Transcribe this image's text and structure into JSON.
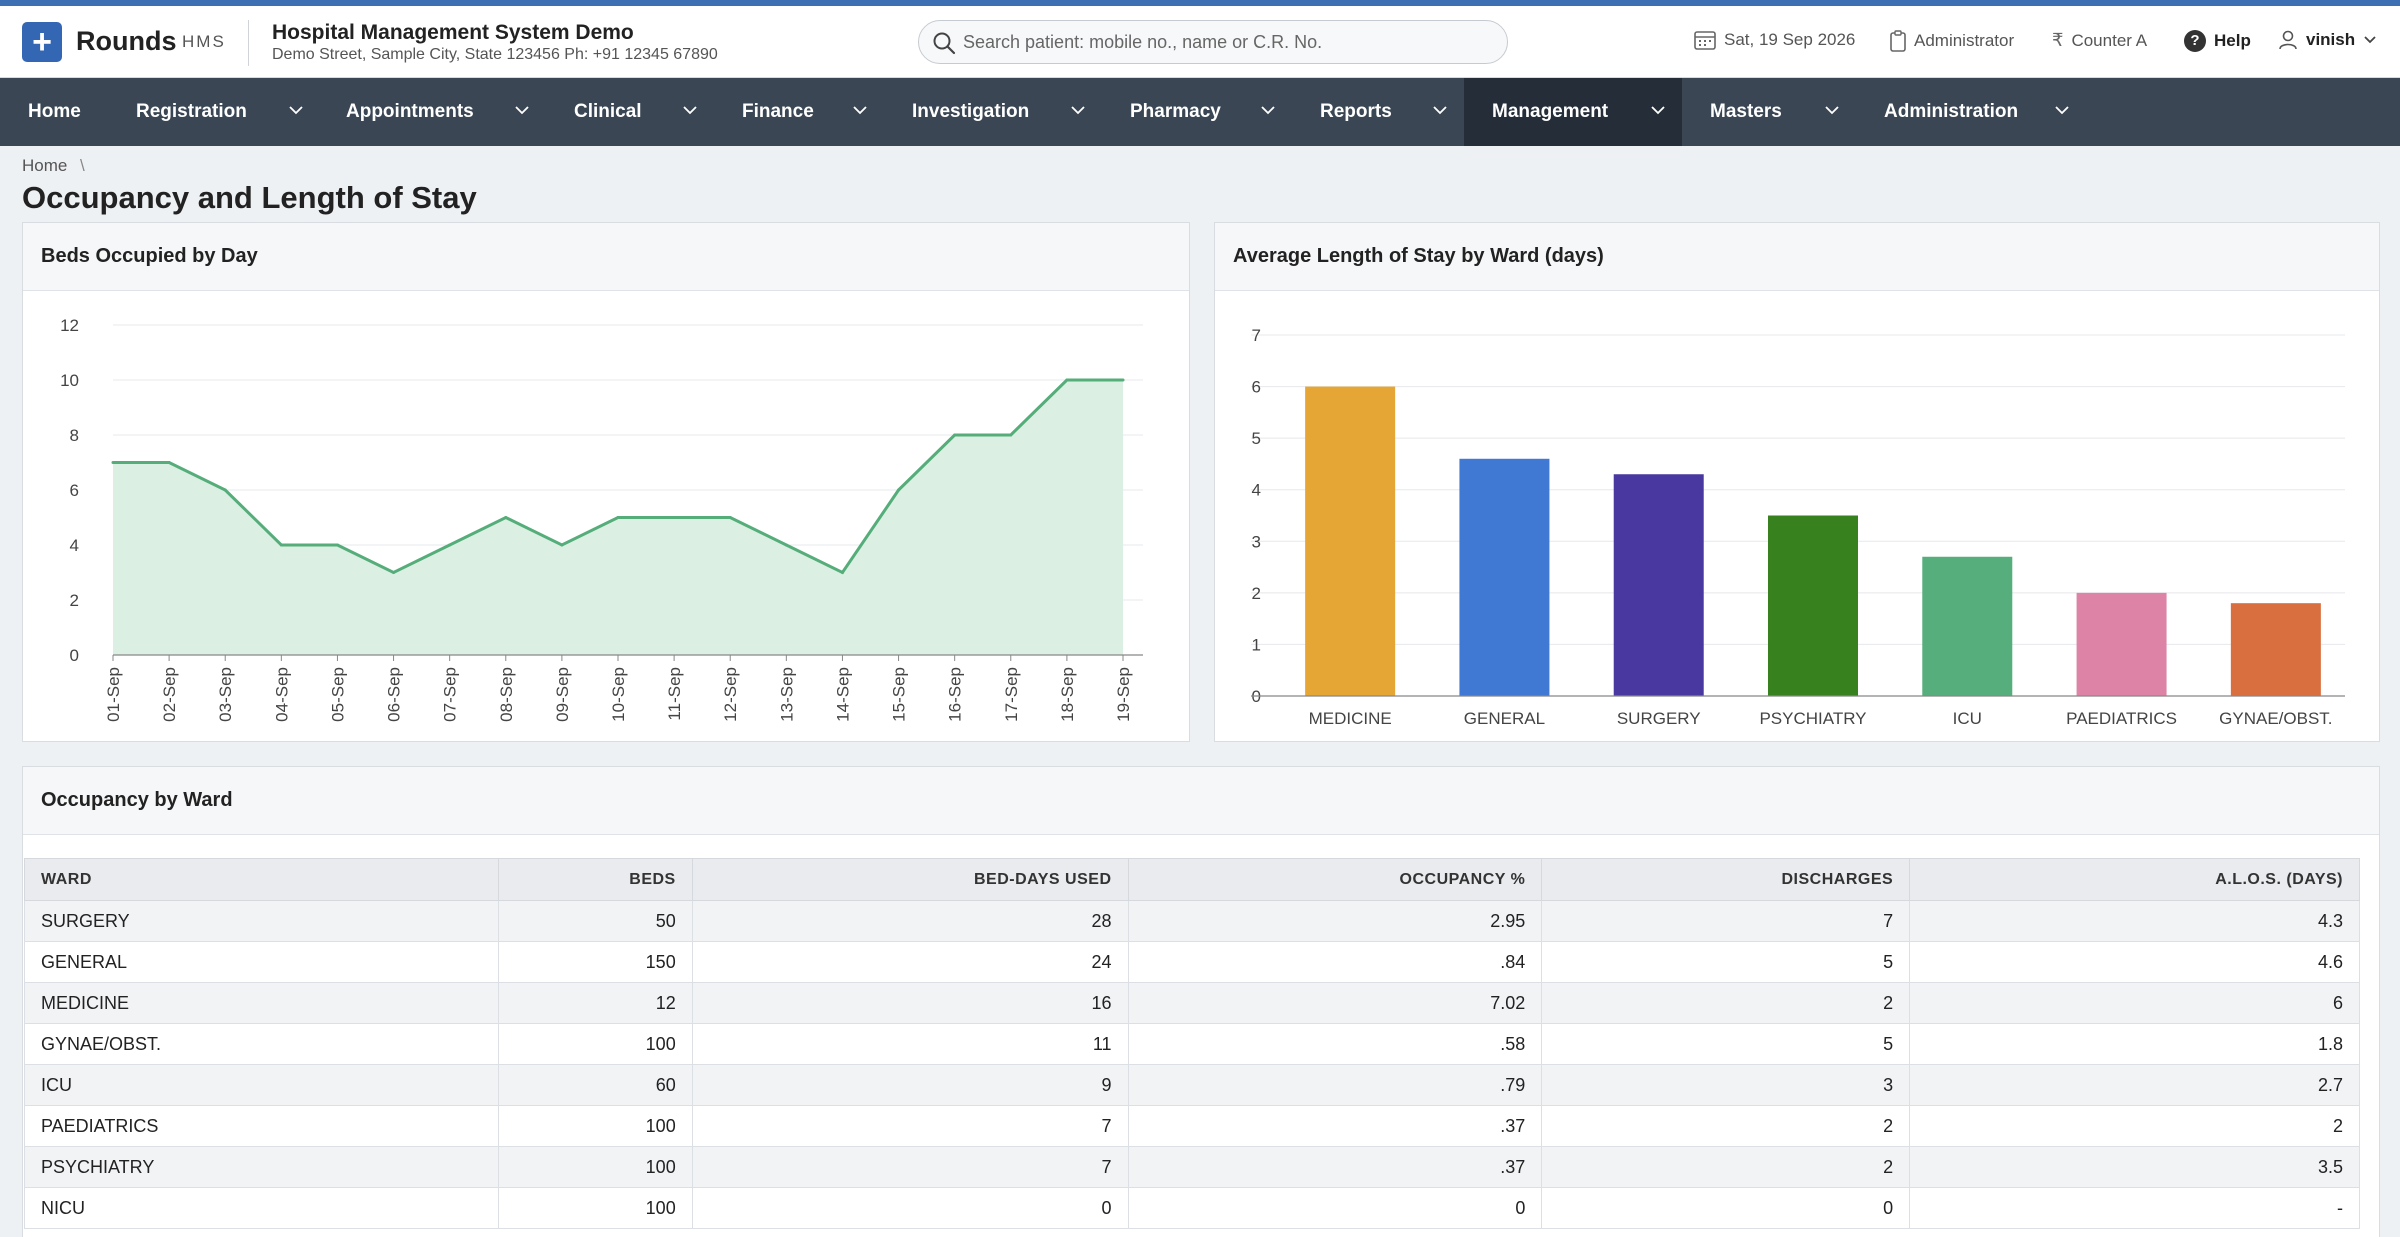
{
  "header": {
    "brand": "Rounds",
    "brand_sub": "HMS",
    "org_name": "Hospital Management System Demo",
    "org_address": "Demo Street, Sample City, State 123456 Ph: +91 12345 67890",
    "search_placeholder": "Search patient: mobile no., name or C.R. No.",
    "date": "Sat, 19 Sep 2026",
    "role": "Administrator",
    "counter": "Counter A",
    "help": "Help",
    "user": "vinish"
  },
  "nav": {
    "items": [
      {
        "label": "Home"
      },
      {
        "label": "Registration"
      },
      {
        "label": "Appointments"
      },
      {
        "label": "Clinical"
      },
      {
        "label": "Finance"
      },
      {
        "label": "Investigation"
      },
      {
        "label": "Pharmacy"
      },
      {
        "label": "Reports"
      },
      {
        "label": "Management"
      },
      {
        "label": "Masters"
      },
      {
        "label": "Administration"
      }
    ],
    "active": "Management"
  },
  "breadcrumb": {
    "home": "Home",
    "separator": "\\"
  },
  "page_title": "Occupancy and Length of Stay",
  "panels": {
    "beds_title": "Beds Occupied by Day",
    "alos_title": "Average Length of Stay by Ward (days)",
    "table_title": "Occupancy by Ward"
  },
  "chart_data": [
    {
      "type": "area",
      "title": "Beds Occupied by Day",
      "categories": [
        "01-Sep",
        "02-Sep",
        "03-Sep",
        "04-Sep",
        "05-Sep",
        "06-Sep",
        "07-Sep",
        "08-Sep",
        "09-Sep",
        "10-Sep",
        "11-Sep",
        "12-Sep",
        "13-Sep",
        "14-Sep",
        "15-Sep",
        "16-Sep",
        "17-Sep",
        "18-Sep",
        "19-Sep"
      ],
      "values": [
        7,
        7,
        6,
        4,
        4,
        3,
        4,
        5,
        4,
        5,
        5,
        5,
        4,
        3,
        6,
        8,
        8,
        10,
        10
      ],
      "ylim": [
        0,
        12
      ],
      "yticks": [
        0,
        2,
        4,
        6,
        8,
        10,
        12
      ],
      "color": "#55ad7a",
      "fill": "#dcefe3",
      "grid": true
    },
    {
      "type": "bar",
      "title": "Average Length of Stay by Ward (days)",
      "categories": [
        "MEDICINE",
        "GENERAL",
        "SURGERY",
        "PSYCHIATRY",
        "ICU",
        "PAEDIATRICS",
        "GYNAE/OBST."
      ],
      "values": [
        6,
        4.6,
        4.3,
        3.5,
        2.7,
        2,
        1.8
      ],
      "colors": [
        "#e5a636",
        "#3f79d3",
        "#4838a0",
        "#37821f",
        "#55ae7c",
        "#dd84a6",
        "#d96f3e"
      ],
      "ylim": [
        0,
        7
      ],
      "yticks": [
        0,
        1,
        2,
        3,
        4,
        5,
        6,
        7
      ],
      "grid": true
    }
  ],
  "table": {
    "columns": [
      "WARD",
      "BEDS",
      "BED-DAYS USED",
      "OCCUPANCY %",
      "DISCHARGES",
      "A.L.O.S. (DAYS)"
    ],
    "rows": [
      [
        "SURGERY",
        "50",
        "28",
        "2.95",
        "7",
        "4.3"
      ],
      [
        "GENERAL",
        "150",
        "24",
        ".84",
        "5",
        "4.6"
      ],
      [
        "MEDICINE",
        "12",
        "16",
        "7.02",
        "2",
        "6"
      ],
      [
        "GYNAE/OBST.",
        "100",
        "11",
        ".58",
        "5",
        "1.8"
      ],
      [
        "ICU",
        "60",
        "9",
        ".79",
        "3",
        "2.7"
      ],
      [
        "PAEDIATRICS",
        "100",
        "7",
        ".37",
        "2",
        "2"
      ],
      [
        "PSYCHIATRY",
        "100",
        "7",
        ".37",
        "2",
        "3.5"
      ],
      [
        "NICU",
        "100",
        "0",
        "0",
        "0",
        "-"
      ]
    ]
  }
}
